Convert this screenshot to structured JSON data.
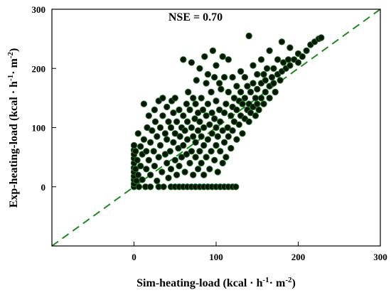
{
  "chart_data": {
    "type": "scatter",
    "annotation": "NSE = 0.70",
    "xlabel": {
      "main": "Sim-heating-load (kcal · h",
      "sup1": "-1",
      "mid": "· m",
      "sup2": "-2",
      "end": ")"
    },
    "ylabel": {
      "main": "Exp-heating-load (kcal · h",
      "sup1": "-1",
      "mid": "· m",
      "sup2": "-2",
      "end": ")"
    },
    "xlim": [
      -100,
      300
    ],
    "ylim": [
      -100,
      300
    ],
    "xticks": [
      0,
      100,
      200,
      300
    ],
    "yticks": [
      0,
      100,
      200,
      300
    ],
    "reference_line": "1:1 dashed",
    "colors": {
      "marker_fill": "#0b140b",
      "marker_edge": "#1e6f1e",
      "reference_line": "#1f8a1f"
    },
    "points": [
      [
        0,
        0
      ],
      [
        0,
        5
      ],
      [
        0,
        12
      ],
      [
        0,
        18
      ],
      [
        0,
        25
      ],
      [
        0,
        32
      ],
      [
        0,
        40
      ],
      [
        0,
        48
      ],
      [
        0,
        55
      ],
      [
        0,
        62
      ],
      [
        0,
        70
      ],
      [
        2,
        60
      ],
      [
        2,
        30
      ],
      [
        3,
        10
      ],
      [
        4,
        45
      ],
      [
        5,
        90
      ],
      [
        5,
        20
      ],
      [
        6,
        0
      ],
      [
        8,
        35
      ],
      [
        8,
        68
      ],
      [
        10,
        55
      ],
      [
        10,
        12
      ],
      [
        12,
        80
      ],
      [
        12,
        140
      ],
      [
        14,
        0
      ],
      [
        15,
        30
      ],
      [
        15,
        60
      ],
      [
        16,
        100
      ],
      [
        18,
        120
      ],
      [
        18,
        45
      ],
      [
        20,
        0
      ],
      [
        20,
        20
      ],
      [
        20,
        75
      ],
      [
        22,
        95
      ],
      [
        24,
        60
      ],
      [
        25,
        130
      ],
      [
        25,
        35
      ],
      [
        26,
        110
      ],
      [
        28,
        10
      ],
      [
        28,
        85
      ],
      [
        30,
        0
      ],
      [
        30,
        50
      ],
      [
        30,
        145
      ],
      [
        32,
        70
      ],
      [
        32,
        100
      ],
      [
        34,
        25
      ],
      [
        35,
        120
      ],
      [
        35,
        150
      ],
      [
        36,
        0
      ],
      [
        38,
        55
      ],
      [
        38,
        90
      ],
      [
        40,
        40
      ],
      [
        40,
        80
      ],
      [
        40,
        135
      ],
      [
        42,
        15
      ],
      [
        42,
        110
      ],
      [
        44,
        60
      ],
      [
        45,
        0
      ],
      [
        45,
        30
      ],
      [
        45,
        100
      ],
      [
        46,
        145
      ],
      [
        48,
        75
      ],
      [
        48,
        125
      ],
      [
        50,
        0
      ],
      [
        50,
        45
      ],
      [
        50,
        90
      ],
      [
        50,
        150
      ],
      [
        52,
        20
      ],
      [
        52,
        110
      ],
      [
        54,
        65
      ],
      [
        55,
        0
      ],
      [
        55,
        130
      ],
      [
        55,
        35
      ],
      [
        56,
        85
      ],
      [
        58,
        100
      ],
      [
        58,
        50
      ],
      [
        60,
        0
      ],
      [
        60,
        70
      ],
      [
        60,
        120
      ],
      [
        60,
        215
      ],
      [
        62,
        25
      ],
      [
        62,
        95
      ],
      [
        64,
        140
      ],
      [
        64,
        55
      ],
      [
        65,
        0
      ],
      [
        65,
        80
      ],
      [
        65,
        110
      ],
      [
        66,
        160
      ],
      [
        68,
        40
      ],
      [
        68,
        130
      ],
      [
        70,
        0
      ],
      [
        70,
        60
      ],
      [
        70,
        100
      ],
      [
        70,
        210
      ],
      [
        72,
        20
      ],
      [
        72,
        85
      ],
      [
        72,
        150
      ],
      [
        74,
        115
      ],
      [
        75,
        0
      ],
      [
        75,
        50
      ],
      [
        75,
        75
      ],
      [
        75,
        140
      ],
      [
        76,
        180
      ],
      [
        78,
        30
      ],
      [
        78,
        95
      ],
      [
        78,
        125
      ],
      [
        80,
        0
      ],
      [
        80,
        60
      ],
      [
        80,
        110
      ],
      [
        80,
        200
      ],
      [
        82,
        40
      ],
      [
        82,
        85
      ],
      [
        82,
        150
      ],
      [
        84,
        130
      ],
      [
        85,
        0
      ],
      [
        85,
        20
      ],
      [
        85,
        70
      ],
      [
        85,
        100
      ],
      [
        86,
        220
      ],
      [
        88,
        50
      ],
      [
        88,
        120
      ],
      [
        88,
        175
      ],
      [
        90,
        0
      ],
      [
        90,
        80
      ],
      [
        90,
        140
      ],
      [
        90,
        190
      ],
      [
        92,
        30
      ],
      [
        92,
        105
      ],
      [
        94,
        60
      ],
      [
        94,
        160
      ],
      [
        95,
        0
      ],
      [
        95,
        90
      ],
      [
        95,
        125
      ],
      [
        96,
        230
      ],
      [
        98,
        45
      ],
      [
        98,
        115
      ],
      [
        98,
        185
      ],
      [
        100,
        0
      ],
      [
        100,
        70
      ],
      [
        100,
        100
      ],
      [
        100,
        145
      ],
      [
        100,
        205
      ],
      [
        102,
        25
      ],
      [
        102,
        85
      ],
      [
        104,
        130
      ],
      [
        104,
        175
      ],
      [
        105,
        0
      ],
      [
        105,
        60
      ],
      [
        105,
        110
      ],
      [
        106,
        165
      ],
      [
        108,
        40
      ],
      [
        108,
        95
      ],
      [
        108,
        220
      ],
      [
        110,
        0
      ],
      [
        110,
        75
      ],
      [
        110,
        125
      ],
      [
        110,
        185
      ],
      [
        112,
        50
      ],
      [
        112,
        140
      ],
      [
        114,
        100
      ],
      [
        115,
        0
      ],
      [
        115,
        85
      ],
      [
        115,
        160
      ],
      [
        115,
        215
      ],
      [
        118,
        65
      ],
      [
        118,
        120
      ],
      [
        120,
        0
      ],
      [
        120,
        95
      ],
      [
        120,
        135
      ],
      [
        120,
        185
      ],
      [
        122,
        110
      ],
      [
        122,
        150
      ],
      [
        124,
        0
      ],
      [
        125,
        80
      ],
      [
        125,
        130
      ],
      [
        125,
        170
      ],
      [
        128,
        105
      ],
      [
        128,
        145
      ],
      [
        130,
        120
      ],
      [
        130,
        160
      ],
      [
        130,
        195
      ],
      [
        132,
        90
      ],
      [
        132,
        140
      ],
      [
        135,
        115
      ],
      [
        135,
        150
      ],
      [
        135,
        185
      ],
      [
        138,
        130
      ],
      [
        138,
        170
      ],
      [
        140,
        110
      ],
      [
        140,
        140
      ],
      [
        140,
        255
      ],
      [
        142,
        160
      ],
      [
        142,
        125
      ],
      [
        145,
        135
      ],
      [
        145,
        175
      ],
      [
        145,
        205
      ],
      [
        148,
        150
      ],
      [
        148,
        120
      ],
      [
        150,
        140
      ],
      [
        150,
        165
      ],
      [
        150,
        190
      ],
      [
        152,
        130
      ],
      [
        155,
        150
      ],
      [
        155,
        175
      ],
      [
        155,
        215
      ],
      [
        158,
        140
      ],
      [
        158,
        190
      ],
      [
        160,
        160
      ],
      [
        160,
        180
      ],
      [
        162,
        200
      ],
      [
        165,
        170
      ],
      [
        165,
        150
      ],
      [
        165,
        230
      ],
      [
        168,
        185
      ],
      [
        170,
        175
      ],
      [
        170,
        200
      ],
      [
        172,
        160
      ],
      [
        175,
        190
      ],
      [
        175,
        215
      ],
      [
        178,
        180
      ],
      [
        180,
        195
      ],
      [
        180,
        245
      ],
      [
        182,
        210
      ],
      [
        185,
        200
      ],
      [
        188,
        215
      ],
      [
        190,
        205
      ],
      [
        190,
        235
      ],
      [
        195,
        215
      ],
      [
        200,
        210
      ],
      [
        200,
        225
      ],
      [
        205,
        220
      ],
      [
        210,
        230
      ],
      [
        215,
        240
      ],
      [
        220,
        245
      ],
      [
        225,
        250
      ],
      [
        228,
        252
      ]
    ]
  }
}
